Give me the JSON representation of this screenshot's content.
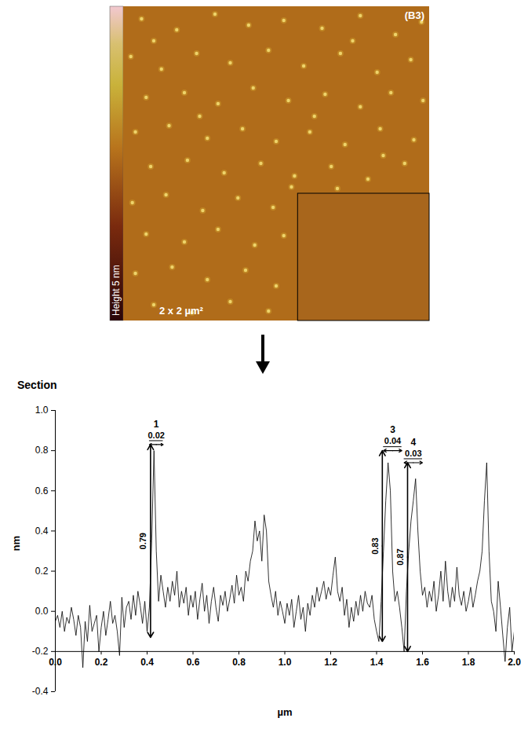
{
  "image": {
    "panel_label": "(B3)",
    "colorbar_label": "Height 5 nm",
    "scan_label": "2 x 2 µm²",
    "size": [
      2,
      2
    ],
    "inset": {
      "x": [
        1.14,
        2
      ],
      "y": [
        1.19,
        2
      ]
    },
    "particles": [
      [
        0.12,
        0.08
      ],
      [
        0.35,
        0.15
      ],
      [
        0.6,
        0.05
      ],
      [
        0.82,
        0.12
      ],
      [
        1.05,
        0.09
      ],
      [
        1.3,
        0.14
      ],
      [
        1.55,
        0.06
      ],
      [
        1.78,
        0.18
      ],
      [
        1.95,
        0.1
      ],
      [
        0.05,
        0.32
      ],
      [
        0.25,
        0.4
      ],
      [
        0.48,
        0.3
      ],
      [
        0.7,
        0.36
      ],
      [
        0.95,
        0.28
      ],
      [
        1.18,
        0.38
      ],
      [
        1.42,
        0.3
      ],
      [
        1.66,
        0.42
      ],
      [
        1.88,
        0.34
      ],
      [
        0.15,
        0.58
      ],
      [
        0.4,
        0.55
      ],
      [
        0.62,
        0.62
      ],
      [
        0.85,
        0.52
      ],
      [
        1.08,
        0.6
      ],
      [
        1.32,
        0.56
      ],
      [
        1.55,
        0.64
      ],
      [
        1.75,
        0.55
      ],
      [
        1.96,
        0.6
      ],
      [
        0.08,
        0.8
      ],
      [
        0.3,
        0.76
      ],
      [
        0.55,
        0.84
      ],
      [
        0.78,
        0.78
      ],
      [
        1.0,
        0.86
      ],
      [
        1.22,
        0.8
      ],
      [
        1.45,
        0.88
      ],
      [
        1.68,
        0.78
      ],
      [
        1.9,
        0.85
      ],
      [
        0.18,
        1.02
      ],
      [
        0.42,
        0.98
      ],
      [
        0.66,
        1.06
      ],
      [
        0.9,
        1.0
      ],
      [
        1.12,
        1.08
      ],
      [
        1.36,
        1.02
      ],
      [
        1.6,
        1.1
      ],
      [
        1.84,
        1.0
      ],
      [
        0.06,
        1.25
      ],
      [
        0.28,
        1.2
      ],
      [
        0.52,
        1.3
      ],
      [
        0.75,
        1.22
      ],
      [
        0.98,
        1.28
      ],
      [
        1.1,
        1.15
      ],
      [
        0.15,
        1.45
      ],
      [
        0.4,
        1.5
      ],
      [
        0.62,
        1.42
      ],
      [
        0.86,
        1.52
      ],
      [
        1.05,
        1.46
      ],
      [
        0.08,
        1.7
      ],
      [
        0.32,
        1.66
      ],
      [
        0.55,
        1.74
      ],
      [
        0.8,
        1.68
      ],
      [
        1.0,
        1.78
      ],
      [
        0.2,
        1.9
      ],
      [
        0.45,
        1.95
      ],
      [
        0.7,
        1.88
      ],
      [
        0.95,
        1.94
      ],
      [
        1.5,
        0.22
      ],
      [
        0.2,
        0.22
      ],
      [
        1.25,
        0.7
      ],
      [
        0.5,
        0.7
      ],
      [
        1.7,
        0.95
      ],
      [
        1.4,
        1.16
      ]
    ]
  },
  "chart_data": {
    "type": "line",
    "title": "Section",
    "x_label": "µm",
    "y_label": "nm",
    "color": "#000000",
    "xlim": [
      0,
      2
    ],
    "ylim": [
      -0.4,
      1.0
    ],
    "x_axis_y": -0.2,
    "xticks": [
      {
        "value": 0,
        "label": "0.0"
      },
      0.2,
      0.4,
      0.6,
      0.8,
      {
        "value": 1,
        "label": "1.0"
      },
      1.2,
      1.4,
      1.6,
      1.8,
      {
        "value": 2,
        "label": "2.0"
      }
    ],
    "yticks": [
      -0.4,
      -0.2,
      {
        "value": 0,
        "label": "0.0"
      },
      0.2,
      0.4,
      0.6,
      0.8,
      {
        "value": 1,
        "label": "1.0"
      }
    ],
    "x": [
      0,
      0.01,
      0.02,
      0.03,
      0.04,
      0.05,
      0.06,
      0.07,
      0.08,
      0.09,
      0.1,
      0.11,
      0.12,
      0.13,
      0.14,
      0.15,
      0.16,
      0.17,
      0.18,
      0.19,
      0.2,
      0.21,
      0.22,
      0.23,
      0.24,
      0.25,
      0.26,
      0.27,
      0.28,
      0.29,
      0.3,
      0.31,
      0.32,
      0.33,
      0.34,
      0.35,
      0.36,
      0.37,
      0.38,
      0.39,
      0.4,
      0.41,
      0.42,
      0.43,
      0.44,
      0.45,
      0.46,
      0.47,
      0.48,
      0.49,
      0.5,
      0.51,
      0.52,
      0.53,
      0.54,
      0.55,
      0.56,
      0.57,
      0.58,
      0.59,
      0.6,
      0.61,
      0.62,
      0.63,
      0.64,
      0.65,
      0.66,
      0.67,
      0.68,
      0.69,
      0.7,
      0.71,
      0.72,
      0.73,
      0.74,
      0.75,
      0.76,
      0.77,
      0.78,
      0.79,
      0.8,
      0.81,
      0.82,
      0.83,
      0.84,
      0.85,
      0.86,
      0.87,
      0.88,
      0.89,
      0.9,
      0.91,
      0.92,
      0.93,
      0.94,
      0.95,
      0.96,
      0.97,
      0.98,
      0.99,
      1,
      1.01,
      1.02,
      1.03,
      1.04,
      1.05,
      1.06,
      1.07,
      1.08,
      1.09,
      1.1,
      1.11,
      1.12,
      1.13,
      1.14,
      1.15,
      1.16,
      1.17,
      1.18,
      1.19,
      1.2,
      1.21,
      1.22,
      1.23,
      1.24,
      1.25,
      1.26,
      1.27,
      1.28,
      1.29,
      1.3,
      1.31,
      1.32,
      1.33,
      1.34,
      1.35,
      1.36,
      1.37,
      1.38,
      1.39,
      1.4,
      1.41,
      1.42,
      1.43,
      1.44,
      1.45,
      1.46,
      1.47,
      1.48,
      1.49,
      1.5,
      1.51,
      1.52,
      1.53,
      1.54,
      1.55,
      1.56,
      1.57,
      1.58,
      1.59,
      1.6,
      1.61,
      1.62,
      1.63,
      1.64,
      1.65,
      1.66,
      1.67,
      1.68,
      1.69,
      1.7,
      1.71,
      1.72,
      1.73,
      1.74,
      1.75,
      1.76,
      1.77,
      1.78,
      1.79,
      1.8,
      1.81,
      1.82,
      1.83,
      1.84,
      1.85,
      1.86,
      1.87,
      1.88,
      1.89,
      1.9,
      1.91,
      1.92,
      1.93,
      1.94,
      1.95,
      1.96,
      1.97,
      1.98,
      1.99,
      2
    ],
    "values": [
      -0.05,
      -0.02,
      -0.08,
      0.0,
      -0.1,
      -0.03,
      -0.06,
      0.02,
      -0.04,
      -0.12,
      -0.02,
      -0.08,
      -0.28,
      -0.05,
      -0.15,
      0.03,
      -0.1,
      -0.06,
      -0.02,
      -0.2,
      -0.08,
      0.0,
      -0.12,
      -0.04,
      0.05,
      -0.06,
      -0.02,
      -0.1,
      -0.22,
      0.07,
      -0.08,
      0.02,
      0.05,
      -0.04,
      0.08,
      -0.02,
      0.1,
      0.03,
      -0.06,
      0.05,
      -0.1,
      0.02,
      0.35,
      0.8,
      0.3,
      0.05,
      0.18,
      0.1,
      0.02,
      0.12,
      0.05,
      0.15,
      0.08,
      0.2,
      0.02,
      0.1,
      0.04,
      0.12,
      -0.02,
      0.08,
      0.02,
      0.1,
      -0.04,
      0.06,
      0.14,
      0.0,
      0.08,
      -0.06,
      0.05,
      0.12,
      0.02,
      -0.05,
      0.08,
      0.03,
      0.1,
      0.0,
      0.06,
      0.13,
      0.04,
      0.18,
      0.08,
      0.12,
      0.05,
      0.2,
      0.15,
      0.25,
      0.3,
      0.45,
      0.35,
      0.4,
      0.25,
      0.48,
      0.4,
      0.15,
      0.08,
      0.02,
      0.1,
      -0.02,
      0.05,
      0.0,
      -0.06,
      0.04,
      -0.02,
      0.06,
      -0.08,
      0.0,
      0.08,
      -0.04,
      0.02,
      -0.1,
      0.04,
      -0.02,
      0.08,
      0.02,
      0.12,
      0.05,
      0.1,
      0.15,
      0.06,
      0.12,
      0.08,
      0.18,
      0.27,
      0.1,
      0.05,
      0.12,
      -0.02,
      0.06,
      -0.08,
      0.02,
      -0.05,
      0.05,
      -0.02,
      0.08,
      0.0,
      0.1,
      0.04,
      0.02,
      0.08,
      -0.04,
      -0.1,
      -0.15,
      0.05,
      0.3,
      0.55,
      0.74,
      0.6,
      0.2,
      0.05,
      0.1,
      0.02,
      -0.08,
      -0.2,
      0.1,
      0.3,
      0.45,
      0.55,
      0.66,
      0.4,
      0.2,
      0.08,
      0.12,
      0.02,
      0.1,
      0.05,
      0.15,
      0.0,
      0.08,
      0.2,
      0.05,
      0.25,
      0.1,
      0.02,
      0.12,
      0.05,
      0.22,
      0.08,
      0.03,
      0.1,
      0.0,
      0.05,
      0.12,
      0.02,
      0.08,
      0.15,
      0.2,
      0.3,
      0.55,
      0.74,
      0.3,
      0.05,
      0.0,
      -0.1,
      0.15,
      0.02,
      -0.12,
      -0.25,
      -0.08,
      0.02,
      -0.2,
      -0.1
    ],
    "annotations": [
      {
        "label": "1",
        "width_label": "0.02",
        "height_label": "0.79",
        "x": 0.415,
        "y_bottom": -0.13,
        "y_top": 0.83,
        "x_start": 0.41,
        "x_end": 0.47
      },
      {
        "label": "3",
        "width_label": "0.04",
        "height_label": "0.83",
        "x": 1.425,
        "y_bottom": -0.15,
        "y_top": 0.8,
        "x_start": 1.43,
        "x_end": 1.51
      },
      {
        "label": "4",
        "width_label": "0.03",
        "height_label": "0.87",
        "x": 1.535,
        "y_bottom": -0.2,
        "y_top": 0.74,
        "x_start": 1.52,
        "x_end": 1.6
      }
    ]
  }
}
